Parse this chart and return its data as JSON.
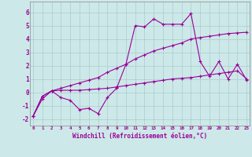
{
  "background_color": "#cde8e8",
  "line_color": "#990099",
  "grid_color": "#aacccc",
  "xlabel": "Windchill (Refroidissement éolien,°C)",
  "ylabel_ticks": [
    -2,
    -1,
    0,
    1,
    2,
    3,
    4,
    5,
    6
  ],
  "xticks": [
    0,
    1,
    2,
    3,
    4,
    5,
    6,
    7,
    8,
    9,
    10,
    11,
    12,
    13,
    14,
    15,
    16,
    17,
    18,
    19,
    20,
    21,
    22,
    23
  ],
  "ylim": [
    -2.5,
    6.8
  ],
  "xlim": [
    -0.3,
    23.3
  ],
  "line1_x": [
    0,
    1,
    2,
    3,
    4,
    5,
    6,
    7,
    8,
    9,
    10,
    11,
    12,
    13,
    14,
    15,
    16,
    17,
    18,
    19,
    20,
    21,
    22,
    23
  ],
  "line1_y": [
    -1.8,
    -0.5,
    0.1,
    -0.4,
    -0.6,
    -1.3,
    -1.2,
    -1.6,
    -0.4,
    0.3,
    2.1,
    5.0,
    4.9,
    5.5,
    5.1,
    5.1,
    5.1,
    5.9,
    2.3,
    1.2,
    2.3,
    1.0,
    2.1,
    0.9
  ],
  "line2_x": [
    0,
    1,
    2,
    3,
    4,
    5,
    6,
    7,
    8,
    9,
    10,
    11,
    12,
    13,
    14,
    15,
    16,
    17,
    18,
    19,
    20,
    21,
    22,
    23
  ],
  "line2_y": [
    -1.8,
    -0.3,
    0.1,
    0.3,
    0.5,
    0.7,
    0.9,
    1.1,
    1.5,
    1.8,
    2.1,
    2.5,
    2.8,
    3.1,
    3.3,
    3.5,
    3.7,
    4.0,
    4.1,
    4.2,
    4.3,
    4.4,
    4.45,
    4.5
  ],
  "line3_x": [
    0,
    1,
    2,
    3,
    4,
    5,
    6,
    7,
    8,
    9,
    10,
    11,
    12,
    13,
    14,
    15,
    16,
    17,
    18,
    19,
    20,
    21,
    22,
    23
  ],
  "line3_y": [
    -1.8,
    -0.3,
    0.1,
    0.15,
    0.15,
    0.15,
    0.2,
    0.25,
    0.3,
    0.4,
    0.5,
    0.6,
    0.7,
    0.8,
    0.9,
    1.0,
    1.05,
    1.1,
    1.2,
    1.3,
    1.4,
    1.5,
    1.6,
    1.0
  ]
}
